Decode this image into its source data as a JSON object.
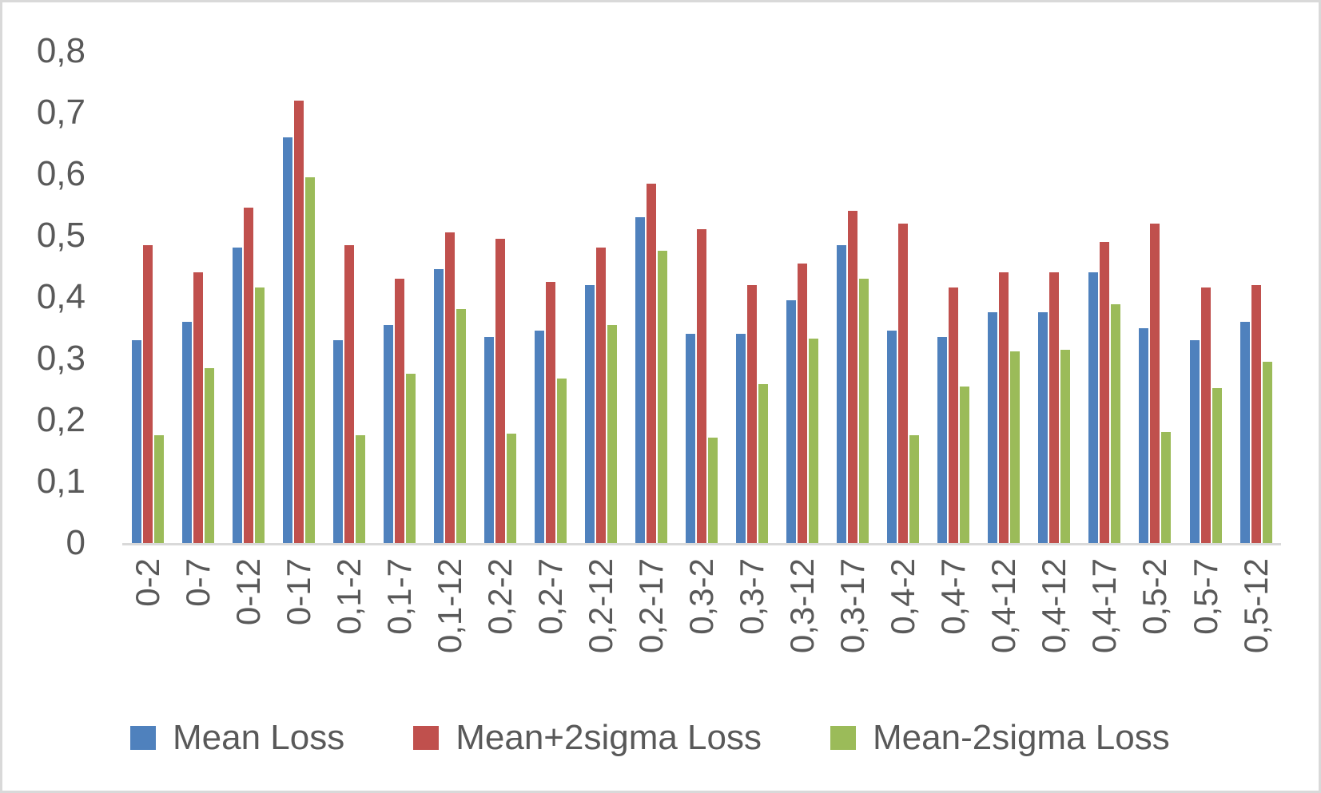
{
  "chart_data": {
    "type": "bar",
    "title": "",
    "xlabel": "",
    "ylabel": "",
    "categories": [
      "0-2",
      "0-7",
      "0-12",
      "0-17",
      "0,1-2",
      "0,1-7",
      "0,1-12",
      "0,2-2",
      "0,2-7",
      "0,2-12",
      "0,2-17",
      "0,3-2",
      "0,3-7",
      "0,3-12",
      "0,3-17",
      "0,4-2",
      "0,4-7",
      "0,4-12",
      "0,4-12",
      "0,4-17",
      "0,5-2",
      "0,5-7",
      "0,5-12"
    ],
    "series": [
      {
        "name": "Mean Loss",
        "color": "#4F81BD",
        "values": [
          0.33,
          0.36,
          0.48,
          0.66,
          0.33,
          0.355,
          0.445,
          0.335,
          0.345,
          0.42,
          0.53,
          0.34,
          0.34,
          0.395,
          0.485,
          0.345,
          0.335,
          0.375,
          0.375,
          0.44,
          0.35,
          0.33,
          0.36
        ]
      },
      {
        "name": "Mean+2sigma Loss",
        "color": "#C0504D",
        "values": [
          0.485,
          0.44,
          0.545,
          0.72,
          0.485,
          0.43,
          0.505,
          0.495,
          0.425,
          0.48,
          0.585,
          0.51,
          0.42,
          0.455,
          0.54,
          0.52,
          0.415,
          0.44,
          0.44,
          0.49,
          0.52,
          0.415,
          0.42
        ]
      },
      {
        "name": "Mean-2sigma Loss",
        "color": "#9BBB59",
        "values": [
          0.175,
          0.285,
          0.415,
          0.595,
          0.175,
          0.275,
          0.38,
          0.178,
          0.268,
          0.355,
          0.475,
          0.172,
          0.258,
          0.333,
          0.43,
          0.175,
          0.255,
          0.312,
          0.314,
          0.388,
          0.18,
          0.252,
          0.295
        ]
      }
    ],
    "ylim": [
      0,
      0.8
    ],
    "ytick_step": 0.1,
    "ytick_labels": [
      "0",
      "0,1",
      "0,2",
      "0,3",
      "0,4",
      "0,5",
      "0,6",
      "0,7",
      "0,8"
    ],
    "decimal_separator": ",",
    "grid": false,
    "legend_position": "bottom",
    "axis_line_color": "#d9d9d9",
    "text_color": "#595959"
  }
}
